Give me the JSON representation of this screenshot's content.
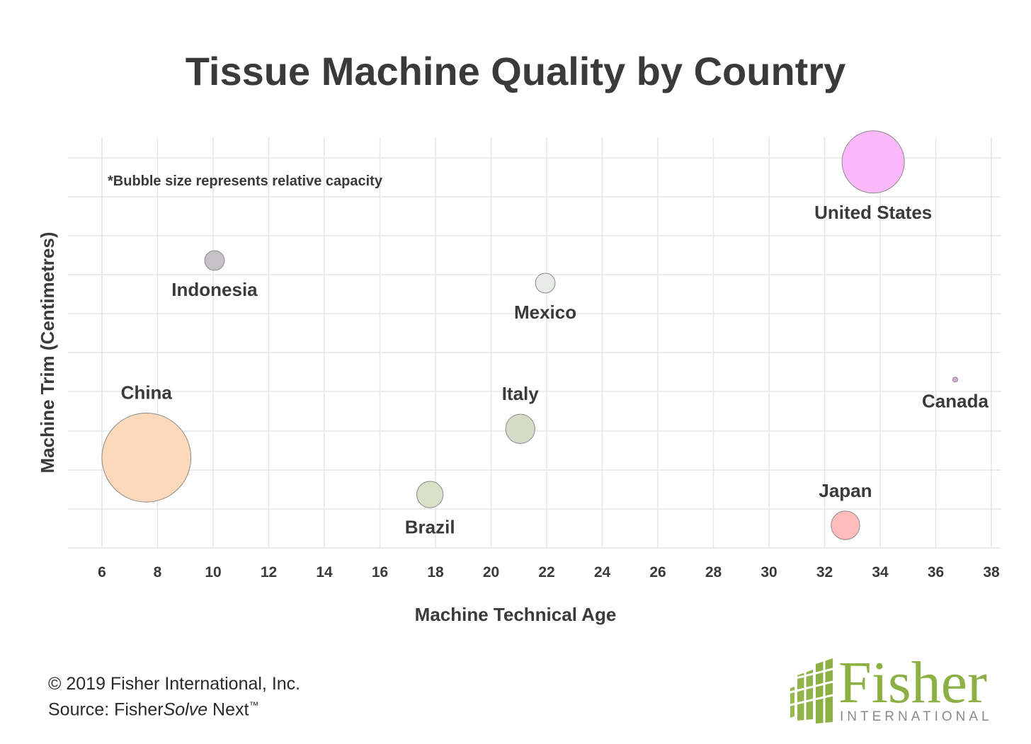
{
  "chart_data": {
    "type": "scatter",
    "title": "Tissue Machine Quality by Country",
    "xlabel": "Machine Technical Age",
    "ylabel": "Machine Trim (Centimetres)",
    "xlim": [
      5,
      38.5
    ],
    "xticks": [
      "6",
      "8",
      "10",
      "12",
      "14",
      "16",
      "18",
      "20",
      "22",
      "24",
      "26",
      "28",
      "30",
      "32",
      "34",
      "36",
      "38"
    ],
    "grid": true,
    "annotation": "*Bubble size represents relative capacity",
    "points": [
      {
        "label": "United States",
        "x": 33.75,
        "y": 0.94,
        "size": 1.0,
        "color": "#fbb8fb"
      },
      {
        "label": "Indonesia",
        "x": 10.05,
        "y": 0.7,
        "size": 0.1,
        "color": "#c7c1c7"
      },
      {
        "label": "Mexico",
        "x": 21.95,
        "y": 0.645,
        "size": 0.1,
        "color": "#e9ebe9"
      },
      {
        "label": "Canada",
        "x": 36.7,
        "y": 0.41,
        "size": 0.002,
        "color": "#d9a8d9"
      },
      {
        "label": "China",
        "x": 7.6,
        "y": 0.22,
        "size": 2.04,
        "color": "#fdd9bb"
      },
      {
        "label": "Italy",
        "x": 21.05,
        "y": 0.29,
        "size": 0.22,
        "color": "#d4dcc8"
      },
      {
        "label": "Brazil",
        "x": 17.8,
        "y": 0.13,
        "size": 0.18,
        "color": "#d6e1c7"
      },
      {
        "label": "Japan",
        "x": 32.75,
        "y": 0.055,
        "size": 0.21,
        "color": "#ffbcbc"
      }
    ]
  },
  "footer": {
    "copyright": "© 2019 Fisher International, Inc.",
    "source_prefix": "Source: Fisher",
    "source_italic": "Solve",
    "source_suffix": " Next",
    "source_tm": "™"
  },
  "logo": {
    "word": "Fisher",
    "sub": "INTERNATIONAL",
    "color": "#8cb043"
  }
}
